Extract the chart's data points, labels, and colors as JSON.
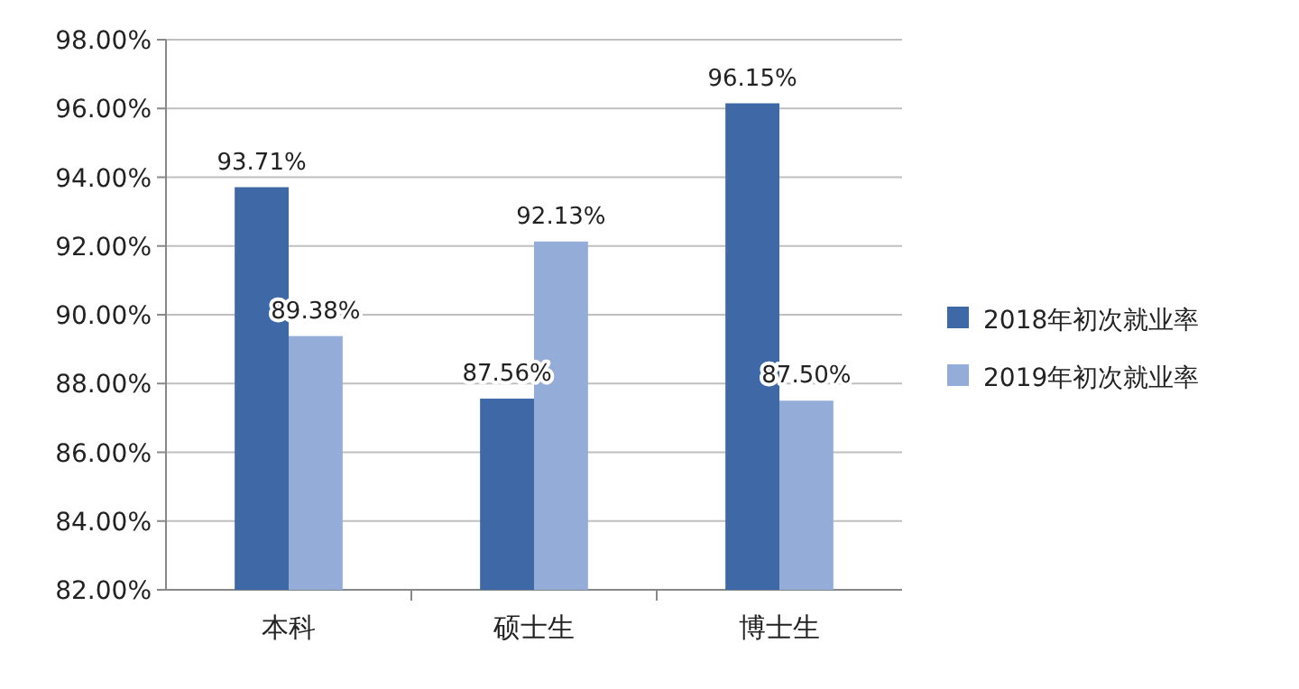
{
  "chart_data": {
    "type": "bar",
    "categories": [
      "本科",
      "硕士生",
      "博士生"
    ],
    "series": [
      {
        "name": "2018年初次就业率",
        "color": "#3e68a6",
        "values": [
          93.71,
          87.56,
          96.15
        ],
        "value_labels": [
          "93.71%",
          "87.56%",
          "96.15%"
        ]
      },
      {
        "name": "2019年初次就业率",
        "color": "#93acd8",
        "values": [
          89.38,
          92.13,
          87.5
        ],
        "value_labels": [
          "89.38%",
          "92.13%",
          "87.50%"
        ]
      }
    ],
    "ylim": [
      82,
      98
    ],
    "yticks": [
      {
        "value": 82,
        "label": "82.00%"
      },
      {
        "value": 84,
        "label": "84.00%"
      },
      {
        "value": 86,
        "label": "86.00%"
      },
      {
        "value": 88,
        "label": "88.00%"
      },
      {
        "value": 90,
        "label": "90.00%"
      },
      {
        "value": 92,
        "label": "92.00%"
      },
      {
        "value": 94,
        "label": "94.00%"
      },
      {
        "value": 96,
        "label": "96.00%"
      },
      {
        "value": 98,
        "label": "98.00%"
      }
    ],
    "grid": "y",
    "legend": "right"
  }
}
